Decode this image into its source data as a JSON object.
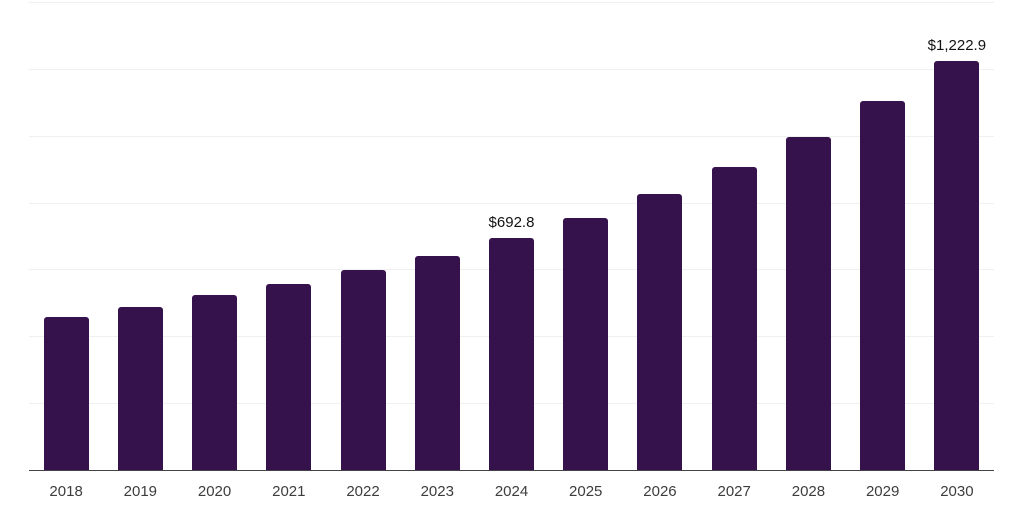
{
  "chart_data": {
    "type": "bar",
    "title": "",
    "xlabel": "",
    "ylabel": "",
    "categories": [
      "2018",
      "2019",
      "2020",
      "2021",
      "2022",
      "2023",
      "2024",
      "2025",
      "2026",
      "2027",
      "2028",
      "2029",
      "2030"
    ],
    "values": [
      459,
      487,
      525,
      556,
      597,
      640,
      692.8,
      753,
      827,
      905,
      996,
      1105,
      1222.9
    ],
    "data_labels": [
      "",
      "",
      "",
      "",
      "",
      "",
      "$692.8",
      "",
      "",
      "",
      "",
      "",
      "$1,222.9"
    ],
    "ylim": [
      0,
      1400
    ],
    "gridline_step": 200,
    "grid": "horizontal",
    "legend": "none",
    "labeled_points": [
      {
        "category": "2024",
        "label": "$692.8"
      },
      {
        "category": "2030",
        "label": "$1,222.9"
      }
    ]
  },
  "colors": {
    "bar": "#36124C",
    "gridline": "#f0f0f0",
    "axis": "#434343",
    "tick_label": "#3d3d3d",
    "value_label": "#121212",
    "background": "#ffffff"
  }
}
